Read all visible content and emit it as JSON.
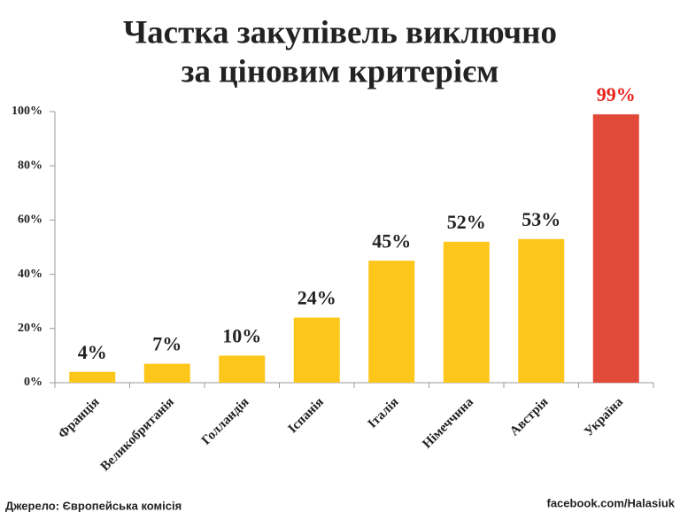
{
  "chart_data": {
    "type": "bar",
    "title": [
      "Частка закупівель виключно",
      "за ціновим критерієм"
    ],
    "categories": [
      "Франція",
      "Великобританія",
      "Голландія",
      "Іспанія",
      "Італія",
      "Німеччина",
      "Австрія",
      "Україна"
    ],
    "values": [
      4,
      7,
      10,
      24,
      45,
      52,
      53,
      99
    ],
    "value_labels": [
      "4%",
      "7%",
      "10%",
      "24%",
      "45%",
      "52%",
      "53%",
      "99%"
    ],
    "colors": [
      "#fdc61b",
      "#fdc61b",
      "#fdc61b",
      "#fdc61b",
      "#fdc61b",
      "#fdc61b",
      "#fdc61b",
      "#e14a39"
    ],
    "value_label_colors": [
      "#222222",
      "#222222",
      "#222222",
      "#222222",
      "#222222",
      "#222222",
      "#222222",
      "#e8221c"
    ],
    "ylim": [
      0,
      100
    ],
    "yticks": [
      {
        "value": 0,
        "label": "0%"
      },
      {
        "value": 20,
        "label": "20%"
      },
      {
        "value": 40,
        "label": "40%"
      },
      {
        "value": 60,
        "label": "60%"
      },
      {
        "value": 80,
        "label": "80%"
      },
      {
        "value": 100,
        "label": "100%"
      }
    ],
    "source": "Джерело: Європейська комісія",
    "credit": "facebook.com/Halasiuk"
  }
}
